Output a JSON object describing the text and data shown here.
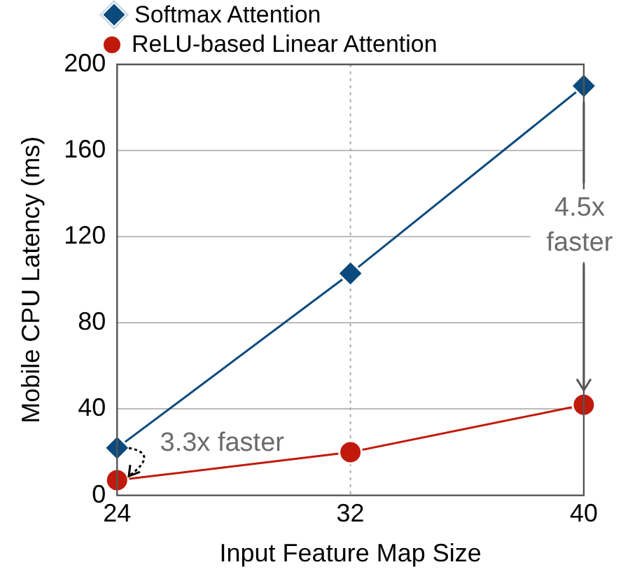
{
  "chart_data": {
    "type": "line",
    "xlabel": "Input Feature Map Size",
    "ylabel": "Mobile CPU Latency (ms)",
    "x": [
      24,
      32,
      40
    ],
    "series": [
      {
        "name": "Softmax Attention",
        "color": "#0b4a7d",
        "values": [
          22,
          103,
          190
        ],
        "marker": "diamond"
      },
      {
        "name": "ReLU-based Linear Attention",
        "color": "#c01a0c",
        "values": [
          7,
          20,
          42
        ],
        "marker": "circle"
      }
    ],
    "xlim": [
      24,
      40
    ],
    "xticks": [
      24,
      32,
      40
    ],
    "ylim": [
      0,
      200
    ],
    "yticks": [
      0,
      40,
      80,
      120,
      160,
      200
    ],
    "grid": "y",
    "legend": "top left",
    "line_style": "solid",
    "ref_lines": [
      {
        "axis": "x",
        "value": 32,
        "color": "#aaaaaa",
        "line_style": "dotted"
      }
    ],
    "annotations": [
      "3.3x faster",
      "4.5x faster"
    ]
  }
}
